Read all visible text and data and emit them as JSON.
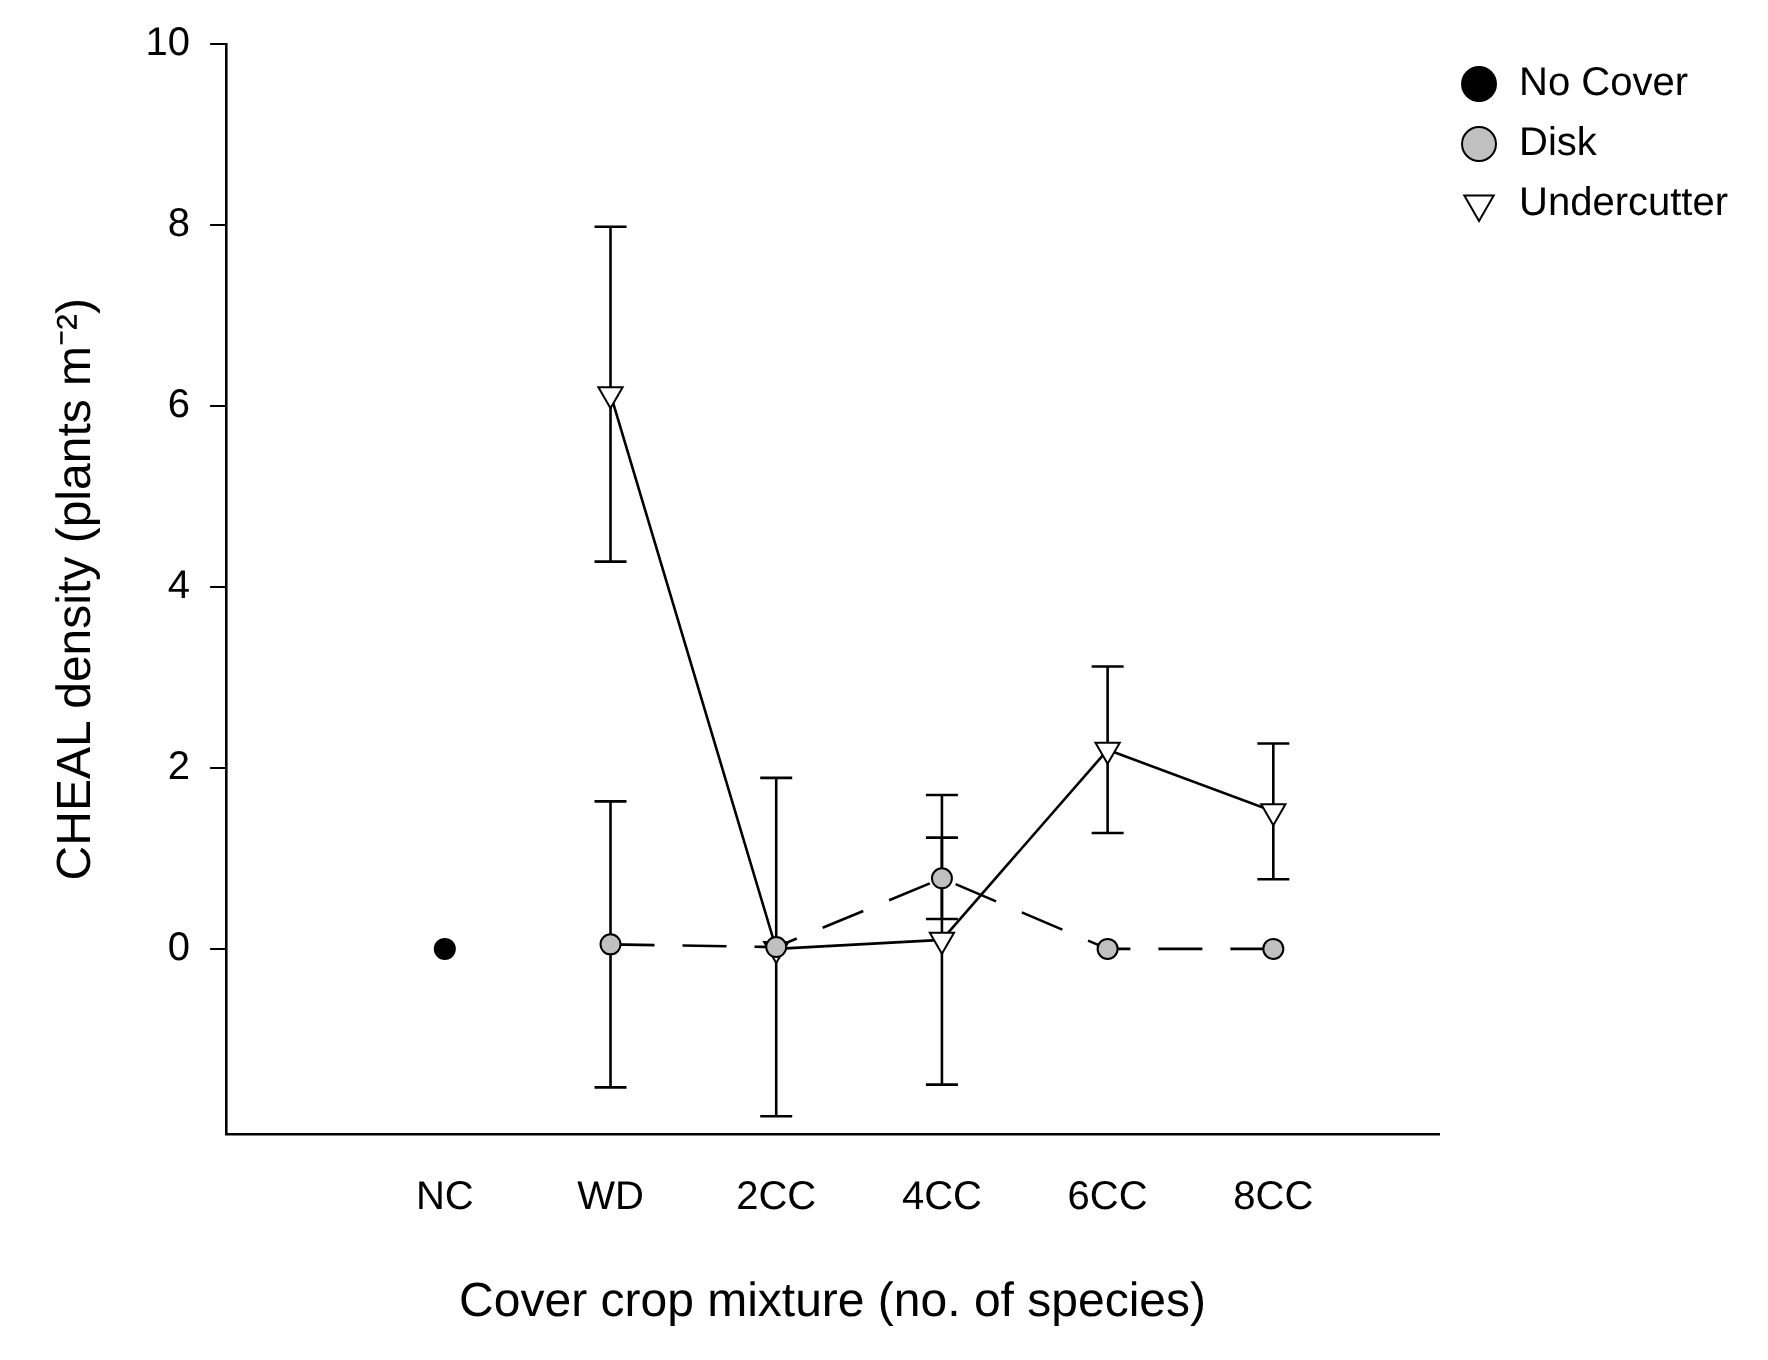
{
  "chart_data": {
    "type": "line",
    "xlabel": "Cover crop mixture (no. of species)",
    "ylabel": "CHEAL density (plants m⁻²)",
    "categories": [
      "NC",
      "WD",
      "2CC",
      "4CC",
      "6CC",
      "8CC"
    ],
    "ylim": [
      -2.05,
      10
    ],
    "yticks": [
      0,
      2,
      4,
      6,
      8,
      10
    ],
    "grid": false,
    "legend": "top right",
    "series": [
      {
        "name": "No Cover",
        "color": "#000000",
        "marker": "circle",
        "line_style": "solid",
        "values": [
          0,
          null,
          null,
          null,
          null,
          null
        ]
      },
      {
        "name": "Disk",
        "color": "#c0c0c0",
        "marker": "circle",
        "line_style": "dashed",
        "values": [
          null,
          0.05,
          0.02,
          0.78,
          0,
          0
        ],
        "errors": [
          null,
          1.58,
          1.87,
          0.45,
          null,
          null
        ]
      },
      {
        "name": "Undercutter",
        "color": "#ffffff",
        "marker": "triangle",
        "line_style": "solid",
        "values": [
          null,
          6.13,
          0,
          0.1,
          2.2,
          1.52
        ],
        "errors": [
          null,
          1.85,
          null,
          1.6,
          0.92,
          0.75
        ]
      }
    ]
  }
}
